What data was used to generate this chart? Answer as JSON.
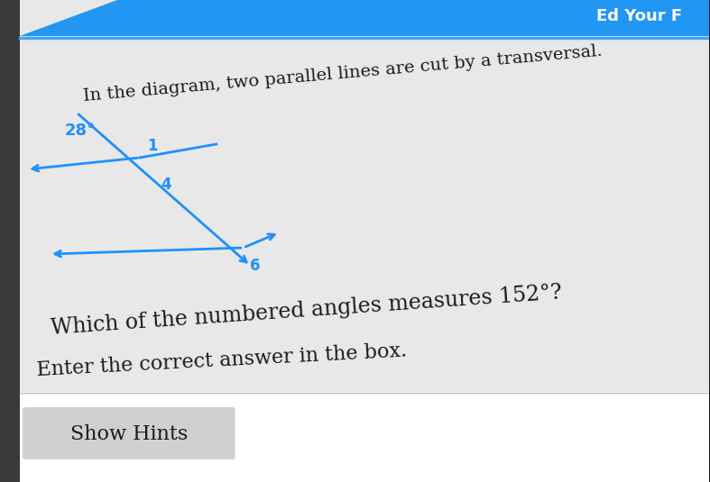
{
  "bg_color": "#1a1a1a",
  "header_color": "#2196F3",
  "header_text": "Ed Your F",
  "header_text_color": "white",
  "page_bg": "#e8e8e8",
  "line1_text": "In the diagram, two parallel lines are cut by a transversal.",
  "question_text": "Which of the numbered angles measures 152°?",
  "instruction_text": "Enter the correct answer in the box.",
  "button_text": "Show Hints",
  "angle_label": "28°",
  "num1": "1",
  "num4": "4",
  "num6": "6",
  "diagram_color": "#1e90ff",
  "text_color": "#1a1a1a",
  "button_bg": "#d0d0d0",
  "button_text_color": "#1a1a1a",
  "separator_color": "#42a5f5",
  "box_bg": "white",
  "box_border": "#bbbbbb"
}
